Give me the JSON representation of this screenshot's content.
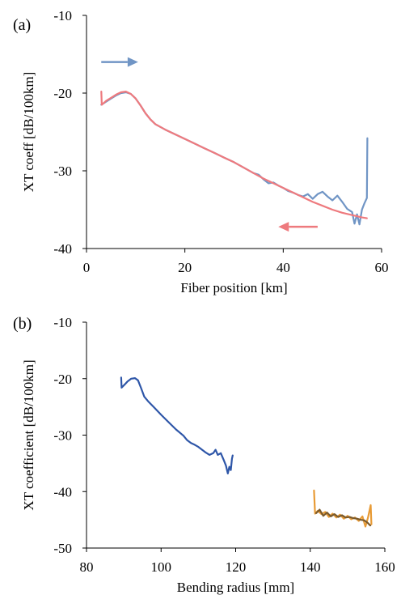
{
  "chart_data": [
    {
      "panel_label": "(a)",
      "type": "line",
      "title": "",
      "xlabel": "Fiber position [km]",
      "ylabel": "XT coeff [dB/100km]",
      "xlim": [
        0,
        60
      ],
      "ylim": [
        -40,
        -10
      ],
      "xticks": [
        0,
        20,
        40,
        60
      ],
      "yticks": [
        -40,
        -30,
        -20,
        -10
      ],
      "grid": false,
      "legend": "none",
      "series": [
        {
          "color": "#7095c5",
          "points": [
            [
              3.0,
              -21.5
            ],
            [
              4,
              -21.1
            ],
            [
              5,
              -20.7
            ],
            [
              6,
              -20.3
            ],
            [
              7,
              -20.0
            ],
            [
              8,
              -19.9
            ],
            [
              9,
              -20.1
            ],
            [
              10,
              -20.7
            ],
            [
              11,
              -21.6
            ],
            [
              12,
              -22.6
            ],
            [
              13,
              -23.4
            ],
            [
              14,
              -24.0
            ],
            [
              16,
              -24.7
            ],
            [
              18,
              -25.3
            ],
            [
              20,
              -25.9
            ],
            [
              22,
              -26.5
            ],
            [
              24,
              -27.1
            ],
            [
              26,
              -27.7
            ],
            [
              28,
              -28.3
            ],
            [
              30,
              -28.9
            ],
            [
              32,
              -29.6
            ],
            [
              34,
              -30.3
            ],
            [
              35,
              -30.5
            ],
            [
              36,
              -31.1
            ],
            [
              37,
              -31.6
            ],
            [
              38,
              -31.5
            ],
            [
              39,
              -31.9
            ],
            [
              40,
              -32.2
            ],
            [
              41,
              -32.6
            ],
            [
              42,
              -32.8
            ],
            [
              43,
              -33.1
            ],
            [
              44,
              -33.3
            ],
            [
              45,
              -33.0
            ],
            [
              46,
              -33.6
            ],
            [
              47,
              -33.0
            ],
            [
              48,
              -32.7
            ],
            [
              49,
              -33.3
            ],
            [
              50,
              -33.8
            ],
            [
              51,
              -33.2
            ],
            [
              52,
              -34.0
            ],
            [
              53,
              -34.9
            ],
            [
              54,
              -35.3
            ],
            [
              54.5,
              -36.8
            ],
            [
              55,
              -35.6
            ],
            [
              55.5,
              -36.9
            ],
            [
              56,
              -35.0
            ],
            [
              56.5,
              -34.2
            ],
            [
              57.0,
              -33.5
            ],
            [
              57.1,
              -25.8
            ]
          ]
        },
        {
          "color": "#ee7a7e",
          "points": [
            [
              3.0,
              -19.8
            ],
            [
              3.1,
              -21.5
            ],
            [
              4,
              -21.0
            ],
            [
              5,
              -20.6
            ],
            [
              6,
              -20.2
            ],
            [
              7,
              -19.9
            ],
            [
              8,
              -19.8
            ],
            [
              9,
              -20.1
            ],
            [
              10,
              -20.7
            ],
            [
              11,
              -21.6
            ],
            [
              12,
              -22.6
            ],
            [
              13,
              -23.4
            ],
            [
              14,
              -24.0
            ],
            [
              16,
              -24.7
            ],
            [
              18,
              -25.3
            ],
            [
              20,
              -25.9
            ],
            [
              22,
              -26.5
            ],
            [
              24,
              -27.1
            ],
            [
              26,
              -27.7
            ],
            [
              28,
              -28.3
            ],
            [
              30,
              -28.9
            ],
            [
              32,
              -29.6
            ],
            [
              34,
              -30.3
            ],
            [
              36,
              -31.0
            ],
            [
              38,
              -31.6
            ],
            [
              40,
              -32.2
            ],
            [
              42,
              -32.8
            ],
            [
              44,
              -33.4
            ],
            [
              46,
              -34.0
            ],
            [
              48,
              -34.5
            ],
            [
              50,
              -35.0
            ],
            [
              52,
              -35.4
            ],
            [
              54,
              -35.7
            ],
            [
              56,
              -36.0
            ],
            [
              57,
              -36.1
            ]
          ]
        }
      ],
      "annotations": [
        {
          "type": "arrow",
          "direction": "right",
          "color": "#7095c5",
          "x": [
            3,
            10.5
          ],
          "y": -16.0
        },
        {
          "type": "arrow",
          "direction": "left",
          "color": "#ee7a7e",
          "x": [
            47,
            39
          ],
          "y": -37.2
        }
      ]
    },
    {
      "panel_label": "(b)",
      "type": "line",
      "title": "",
      "xlabel": "Bending radius [mm]",
      "ylabel": "XT coefficient [dB/100km]",
      "xlim": [
        80,
        160
      ],
      "ylim": [
        -50,
        -10
      ],
      "xticks": [
        80,
        100,
        120,
        140,
        160
      ],
      "yticks": [
        -50,
        -40,
        -30,
        -20,
        -10
      ],
      "grid": false,
      "legend": "none",
      "series": [
        {
          "color": "#2e56a8",
          "points": [
            [
              89.3,
              -19.8
            ],
            [
              89.4,
              -21.6
            ],
            [
              90.3,
              -21.0
            ],
            [
              91,
              -20.5
            ],
            [
              92,
              -20.0
            ],
            [
              93,
              -19.9
            ],
            [
              93.8,
              -20.3
            ],
            [
              94.6,
              -21.6
            ],
            [
              95.5,
              -23.2
            ],
            [
              96.5,
              -24.0
            ],
            [
              98,
              -25.0
            ],
            [
              100,
              -26.4
            ],
            [
              102,
              -27.7
            ],
            [
              104,
              -29.0
            ],
            [
              106,
              -30.1
            ],
            [
              107,
              -30.9
            ],
            [
              108,
              -31.4
            ],
            [
              109,
              -31.7
            ],
            [
              110,
              -32.1
            ],
            [
              111,
              -32.6
            ],
            [
              112,
              -33.1
            ],
            [
              113,
              -33.5
            ],
            [
              114,
              -33.2
            ],
            [
              114.6,
              -32.6
            ],
            [
              115.2,
              -33.5
            ],
            [
              116,
              -33.2
            ],
            [
              116.8,
              -34.4
            ],
            [
              117.4,
              -35.4
            ],
            [
              117.9,
              -36.8
            ],
            [
              118.3,
              -35.6
            ],
            [
              118.7,
              -36.2
            ],
            [
              119.0,
              -34.2
            ],
            [
              119.2,
              -33.6
            ]
          ]
        },
        {
          "color": "#e89b36",
          "points": [
            [
              141.0,
              -39.8
            ],
            [
              141.3,
              -43.9
            ],
            [
              142,
              -43.4
            ],
            [
              143,
              -44.0
            ],
            [
              144,
              -43.6
            ],
            [
              145,
              -44.5
            ],
            [
              146,
              -43.9
            ],
            [
              147,
              -44.6
            ],
            [
              148,
              -44.1
            ],
            [
              149,
              -44.8
            ],
            [
              150,
              -44.3
            ],
            [
              151,
              -44.9
            ],
            [
              152,
              -44.6
            ],
            [
              153,
              -45.2
            ],
            [
              154,
              -44.4
            ],
            [
              154.8,
              -46.2
            ],
            [
              155.5,
              -44.6
            ],
            [
              156.2,
              -42.4
            ],
            [
              156.4,
              -45.8
            ]
          ]
        },
        {
          "color": "#7a5a2c",
          "points": [
            [
              141.6,
              -43.8
            ],
            [
              142.5,
              -43.2
            ],
            [
              143.5,
              -44.3
            ],
            [
              144.5,
              -43.7
            ],
            [
              145.5,
              -44.4
            ],
            [
              146.5,
              -44.0
            ],
            [
              147.5,
              -44.5
            ],
            [
              148.5,
              -44.2
            ],
            [
              149.5,
              -44.6
            ],
            [
              150.5,
              -44.5
            ],
            [
              151.5,
              -44.7
            ],
            [
              152.5,
              -44.8
            ],
            [
              153.5,
              -45.0
            ],
            [
              154.5,
              -45.1
            ],
            [
              155.5,
              -45.6
            ],
            [
              156.1,
              -46.0
            ]
          ]
        }
      ],
      "annotations": []
    }
  ]
}
